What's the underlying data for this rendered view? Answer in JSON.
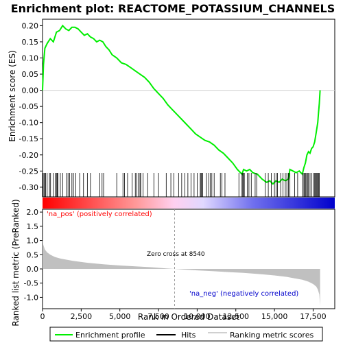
{
  "chart_data": {
    "type": "line",
    "title": "Enrichment plot: REACTOME_POTASSIUM_CHANNELS",
    "top_panel": {
      "ylabel": "Enrichment score (ES)",
      "ylim": [
        -0.33,
        0.22
      ],
      "yticks": [
        0.2,
        0.15,
        0.1,
        0.05,
        0.0,
        -0.05,
        -0.1,
        -0.15,
        -0.2,
        -0.25,
        -0.3
      ],
      "ytick_labels": [
        "0.20",
        "0.15",
        "0.10",
        "0.05",
        "0.00",
        "-0.05",
        "-0.10",
        "-0.15",
        "-0.20",
        "-0.25",
        "-0.30"
      ],
      "series_color": "#00ee00",
      "enrichment_profile": {
        "x": [
          0,
          60,
          150,
          300,
          500,
          700,
          900,
          1100,
          1300,
          1500,
          1700,
          1900,
          2100,
          2300,
          2500,
          2700,
          2900,
          3100,
          3300,
          3500,
          3700,
          3900,
          4100,
          4300,
          4500,
          4800,
          5100,
          5400,
          5700,
          6000,
          6300,
          6600,
          6900,
          7200,
          7500,
          7800,
          8100,
          8400,
          8700,
          9000,
          9300,
          9600,
          9900,
          10200,
          10500,
          10800,
          11100,
          11400,
          11700,
          12000,
          12300,
          12600,
          12900,
          13000,
          13200,
          13400,
          13600,
          13900,
          14200,
          14500,
          14700,
          14900,
          15100,
          15300,
          15500,
          15700,
          15900,
          16000,
          16200,
          16400,
          16600,
          16800,
          16900,
          17000,
          17100,
          17200,
          17300,
          17400,
          17500,
          17600,
          17700,
          17800,
          17850,
          17900,
          17950
        ],
        "y": [
          0.0,
          0.08,
          0.13,
          0.145,
          0.16,
          0.15,
          0.18,
          0.185,
          0.2,
          0.19,
          0.185,
          0.195,
          0.195,
          0.19,
          0.18,
          0.17,
          0.175,
          0.165,
          0.16,
          0.15,
          0.155,
          0.15,
          0.135,
          0.125,
          0.11,
          0.1,
          0.085,
          0.08,
          0.07,
          0.06,
          0.05,
          0.04,
          0.025,
          0.005,
          -0.01,
          -0.025,
          -0.045,
          -0.06,
          -0.075,
          -0.09,
          -0.105,
          -0.12,
          -0.135,
          -0.145,
          -0.155,
          -0.16,
          -0.17,
          -0.185,
          -0.195,
          -0.21,
          -0.225,
          -0.245,
          -0.26,
          -0.245,
          -0.25,
          -0.245,
          -0.255,
          -0.26,
          -0.275,
          -0.285,
          -0.28,
          -0.29,
          -0.28,
          -0.285,
          -0.275,
          -0.28,
          -0.275,
          -0.245,
          -0.25,
          -0.255,
          -0.25,
          -0.26,
          -0.24,
          -0.225,
          -0.2,
          -0.19,
          -0.195,
          -0.18,
          -0.175,
          -0.16,
          -0.13,
          -0.1,
          -0.07,
          -0.04,
          0.0
        ]
      }
    },
    "hits": [
      30,
      90,
      140,
      200,
      300,
      450,
      520,
      700,
      820,
      900,
      950,
      1000,
      1150,
      1300,
      1550,
      1650,
      1750,
      1900,
      2000,
      2150,
      2400,
      2650,
      2900,
      3100,
      3700,
      3850,
      3950,
      4800,
      5200,
      5300,
      5500,
      5800,
      6000,
      6100,
      6200,
      6300,
      6350,
      6500,
      6800,
      7200,
      7500,
      8000,
      8300,
      8500,
      8800,
      9000,
      9200,
      9400,
      9600,
      9800,
      10000,
      10200,
      10250,
      10300,
      10350,
      10600,
      10750,
      10850,
      10950,
      11100,
      11500,
      11600,
      11800,
      12700,
      12900,
      12950,
      13000,
      13050,
      13250,
      13350,
      13500,
      13750,
      13850,
      14400,
      14600,
      14800,
      15000,
      15100,
      15200,
      15400,
      15550,
      15700,
      15800,
      15900,
      16000,
      16300,
      16500,
      16800,
      16900,
      16950,
      17000,
      17050,
      17150,
      17200,
      17300,
      17400,
      17500,
      17600,
      17650,
      17700,
      17750,
      17800,
      17850,
      17900
    ],
    "rank_metric": {
      "ylabel": "Ranked list metric (PreRanked)",
      "ylim": [
        -1.4,
        2.1
      ],
      "yticks": [
        2.0,
        1.5,
        1.0,
        0.5,
        0.0,
        -0.5,
        -1.0
      ],
      "ytick_labels": [
        "2.0",
        "1.5",
        "1.0",
        "0.5",
        "0.0",
        "-0.5",
        "-1.0"
      ],
      "x": [
        0,
        50,
        150,
        300,
        500,
        800,
        1200,
        2000,
        3000,
        4000,
        5000,
        6000,
        7000,
        8000,
        8540,
        9000,
        10000,
        11000,
        12000,
        13000,
        14000,
        15000,
        15800,
        16300,
        16800,
        17200,
        17500,
        17700,
        17800,
        17900,
        17950
      ],
      "y": [
        1.05,
        0.85,
        0.68,
        0.58,
        0.5,
        0.42,
        0.36,
        0.28,
        0.21,
        0.16,
        0.12,
        0.09,
        0.06,
        0.02,
        0.0,
        -0.02,
        -0.05,
        -0.08,
        -0.11,
        -0.14,
        -0.18,
        -0.23,
        -0.28,
        -0.33,
        -0.38,
        -0.45,
        -0.53,
        -0.62,
        -0.72,
        -0.9,
        -1.3
      ],
      "fill_color": "#c0c0c0"
    },
    "xaxis": {
      "xlabel": "Rank in Ordered Dataset",
      "xlim": [
        0,
        18900
      ],
      "xticks": [
        0,
        2500,
        5000,
        7500,
        10000,
        12500,
        15000,
        17500
      ],
      "xtick_labels": [
        "0",
        "2,500",
        "5,000",
        "7,500",
        "10,000",
        "12,500",
        "15,000",
        "17,500"
      ]
    },
    "annotations": {
      "pos_label": "'na_pos' (positively correlated)",
      "neg_label": "'na_neg' (negatively correlated)",
      "zero_cross_label": "Zero cross at 8540",
      "zero_cross": 8540,
      "pos_color": "#ff0000",
      "neg_color": "#0000cc"
    },
    "legend": {
      "placement": "bottom",
      "entries": [
        {
          "label": "Enrichment profile",
          "color": "#00ee00"
        },
        {
          "label": "Hits",
          "color": "#000000"
        },
        {
          "label": "Ranking metric scores",
          "color": "#c0c0c0"
        }
      ]
    },
    "grid": false
  }
}
